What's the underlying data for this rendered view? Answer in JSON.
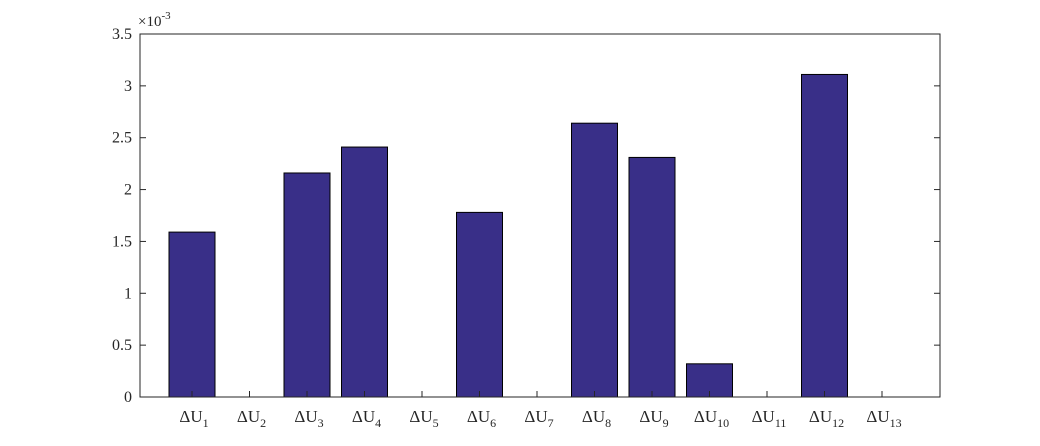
{
  "chart_data": {
    "type": "bar",
    "categories": [
      "ΔU1",
      "ΔU2",
      "ΔU3",
      "ΔU4",
      "ΔU5",
      "ΔU6",
      "ΔU7",
      "ΔU8",
      "ΔU9",
      "ΔU10",
      "ΔU11",
      "ΔU12",
      "ΔU13"
    ],
    "category_labels": [
      {
        "base": "ΔU",
        "sub": "1"
      },
      {
        "base": "ΔU",
        "sub": "2"
      },
      {
        "base": "ΔU",
        "sub": "3"
      },
      {
        "base": "ΔU",
        "sub": "4"
      },
      {
        "base": "ΔU",
        "sub": "5"
      },
      {
        "base": "ΔU",
        "sub": "6"
      },
      {
        "base": "ΔU",
        "sub": "7"
      },
      {
        "base": "ΔU",
        "sub": "8"
      },
      {
        "base": "ΔU",
        "sub": "9"
      },
      {
        "base": "ΔU",
        "sub": "10"
      },
      {
        "base": "ΔU",
        "sub": "11"
      },
      {
        "base": "ΔU",
        "sub": "12"
      },
      {
        "base": "ΔU",
        "sub": "13"
      }
    ],
    "values": [
      0.00159,
      0,
      0.00216,
      0.00241,
      0,
      0.00178,
      0,
      0.00264,
      0.00231,
      0.00032,
      0,
      0.00311,
      0
    ],
    "ylim": [
      0,
      0.0035
    ],
    "yticks": [
      0,
      0.0005,
      0.001,
      0.0015,
      0.002,
      0.0025,
      0.003,
      0.0035
    ],
    "ytick_labels": [
      "0",
      "0.5",
      "1",
      "1.5",
      "2",
      "2.5",
      "3",
      "3.5"
    ],
    "y_multiplier": {
      "base": "×10",
      "exponent": "-3"
    },
    "bar_color": "#392f88",
    "grid": false,
    "legend": "none",
    "title": "",
    "xlabel": "",
    "ylabel": ""
  }
}
